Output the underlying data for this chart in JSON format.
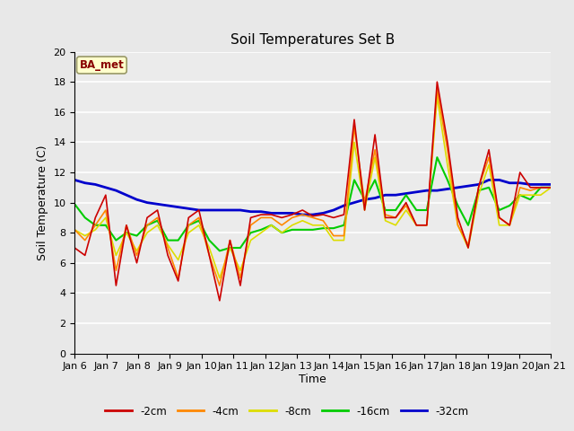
{
  "title": "Soil Temperatures Set B",
  "xlabel": "Time",
  "ylabel": "Soil Temperature (C)",
  "annotation": "BA_met",
  "ylim": [
    0,
    20
  ],
  "yticks": [
    0,
    2,
    4,
    6,
    8,
    10,
    12,
    14,
    16,
    18,
    20
  ],
  "xtick_labels": [
    "Jan 6",
    "Jan 7",
    "Jan 8",
    "Jan 9",
    "Jan 10",
    "Jan 11",
    "Jan 12",
    "Jan 13",
    "Jan 14",
    "Jan 15",
    "Jan 16",
    "Jan 17",
    "Jan 18",
    "Jan 19",
    "Jan 20",
    "Jan 21"
  ],
  "series": {
    "-2cm": {
      "color": "#cc0000",
      "linewidth": 1.2,
      "values": [
        7.0,
        6.5,
        9.0,
        10.5,
        4.5,
        8.5,
        6.0,
        9.0,
        9.5,
        6.5,
        4.8,
        9.0,
        9.5,
        6.5,
        3.5,
        7.5,
        4.5,
        9.0,
        9.2,
        9.2,
        9.0,
        9.2,
        9.5,
        9.1,
        9.2,
        9.0,
        9.2,
        15.5,
        9.5,
        14.5,
        9.0,
        9.0,
        10.0,
        8.5,
        8.5,
        18.0,
        14.0,
        9.0,
        7.0,
        11.0,
        13.5,
        9.0,
        8.5,
        12.0,
        11.0,
        11.0,
        11.0
      ]
    },
    "-4cm": {
      "color": "#ff8800",
      "linewidth": 1.2,
      "values": [
        8.2,
        7.5,
        8.5,
        9.5,
        5.5,
        8.5,
        6.5,
        8.5,
        9.0,
        7.0,
        5.0,
        8.5,
        9.0,
        6.5,
        4.5,
        7.5,
        5.0,
        8.5,
        9.0,
        9.0,
        8.5,
        9.0,
        9.2,
        9.0,
        8.8,
        7.8,
        7.8,
        15.0,
        10.0,
        13.5,
        9.2,
        9.0,
        9.8,
        8.5,
        8.5,
        17.5,
        13.5,
        8.5,
        7.2,
        11.0,
        13.0,
        9.0,
        8.5,
        11.0,
        10.8,
        11.0,
        11.0
      ]
    },
    "-8cm": {
      "color": "#dddd00",
      "linewidth": 1.2,
      "values": [
        8.2,
        7.8,
        8.2,
        9.0,
        6.5,
        8.0,
        6.8,
        8.0,
        8.5,
        7.2,
        6.2,
        8.0,
        8.5,
        7.0,
        5.0,
        7.0,
        5.5,
        7.5,
        8.0,
        8.5,
        8.0,
        8.5,
        8.8,
        8.5,
        8.5,
        7.5,
        7.5,
        14.0,
        9.5,
        13.0,
        8.8,
        8.5,
        9.5,
        8.5,
        8.5,
        17.0,
        12.5,
        8.5,
        7.0,
        10.5,
        12.5,
        8.5,
        8.5,
        10.5,
        10.5,
        10.5,
        11.0
      ]
    },
    "-16cm": {
      "color": "#00cc00",
      "linewidth": 1.5,
      "values": [
        9.9,
        9.0,
        8.5,
        8.5,
        7.5,
        8.0,
        7.8,
        8.5,
        8.8,
        7.5,
        7.5,
        8.5,
        8.8,
        7.5,
        6.8,
        7.0,
        7.0,
        8.0,
        8.2,
        8.5,
        8.0,
        8.2,
        8.2,
        8.2,
        8.3,
        8.3,
        8.5,
        11.5,
        10.2,
        11.5,
        9.5,
        9.5,
        10.5,
        9.5,
        9.5,
        13.0,
        11.5,
        9.8,
        8.5,
        10.8,
        11.0,
        9.5,
        9.8,
        10.5,
        10.2,
        11.0,
        11.0
      ]
    },
    "-32cm": {
      "color": "#0000cc",
      "linewidth": 2.0,
      "values": [
        11.5,
        11.3,
        11.2,
        11.0,
        10.8,
        10.5,
        10.2,
        10.0,
        9.9,
        9.8,
        9.7,
        9.6,
        9.5,
        9.5,
        9.5,
        9.5,
        9.5,
        9.4,
        9.4,
        9.3,
        9.3,
        9.3,
        9.2,
        9.2,
        9.3,
        9.5,
        9.8,
        10.0,
        10.2,
        10.3,
        10.5,
        10.5,
        10.6,
        10.7,
        10.8,
        10.8,
        10.9,
        11.0,
        11.1,
        11.2,
        11.5,
        11.5,
        11.3,
        11.3,
        11.2,
        11.2,
        11.2
      ]
    }
  },
  "bg_color": "#e8e8e8",
  "plot_bg_color": "#ebebeb",
  "grid_color": "#ffffff",
  "legend_items": [
    "-2cm",
    "-4cm",
    "-8cm",
    "-16cm",
    "-32cm"
  ],
  "legend_colors": [
    "#cc0000",
    "#ff8800",
    "#dddd00",
    "#00cc00",
    "#0000cc"
  ],
  "title_fontsize": 11,
  "axis_label_fontsize": 9,
  "tick_fontsize": 8
}
